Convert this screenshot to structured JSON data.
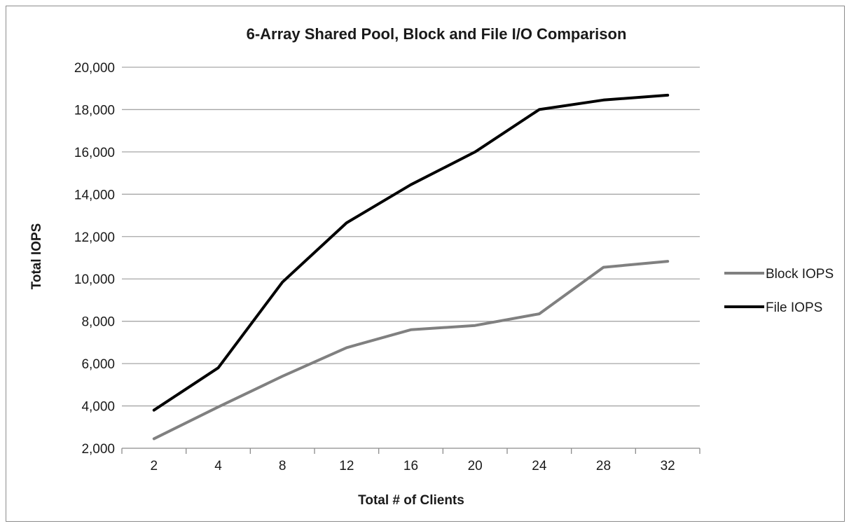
{
  "chart_data": {
    "type": "line",
    "title": "6-Array Shared Pool, Block and File I/O Comparison",
    "xlabel": "Total # of Clients",
    "ylabel": "Total IOPS",
    "categories": [
      "2",
      "4",
      "8",
      "12",
      "16",
      "20",
      "24",
      "28",
      "32"
    ],
    "ylim": [
      2000,
      20000
    ],
    "yticks": [
      "2,000",
      "4,000",
      "6,000",
      "8,000",
      "10,000",
      "12,000",
      "14,000",
      "16,000",
      "18,000",
      "20,000"
    ],
    "grid": true,
    "legend_position": "right",
    "series": [
      {
        "name": "Block IOPS",
        "color": "#808080",
        "values": [
          2450,
          3950,
          5400,
          6750,
          7600,
          7800,
          8350,
          10550,
          10830
        ]
      },
      {
        "name": "File IOPS",
        "color": "#000000",
        "values": [
          3800,
          5800,
          9850,
          12650,
          14450,
          16000,
          18000,
          18450,
          18680
        ]
      }
    ]
  }
}
